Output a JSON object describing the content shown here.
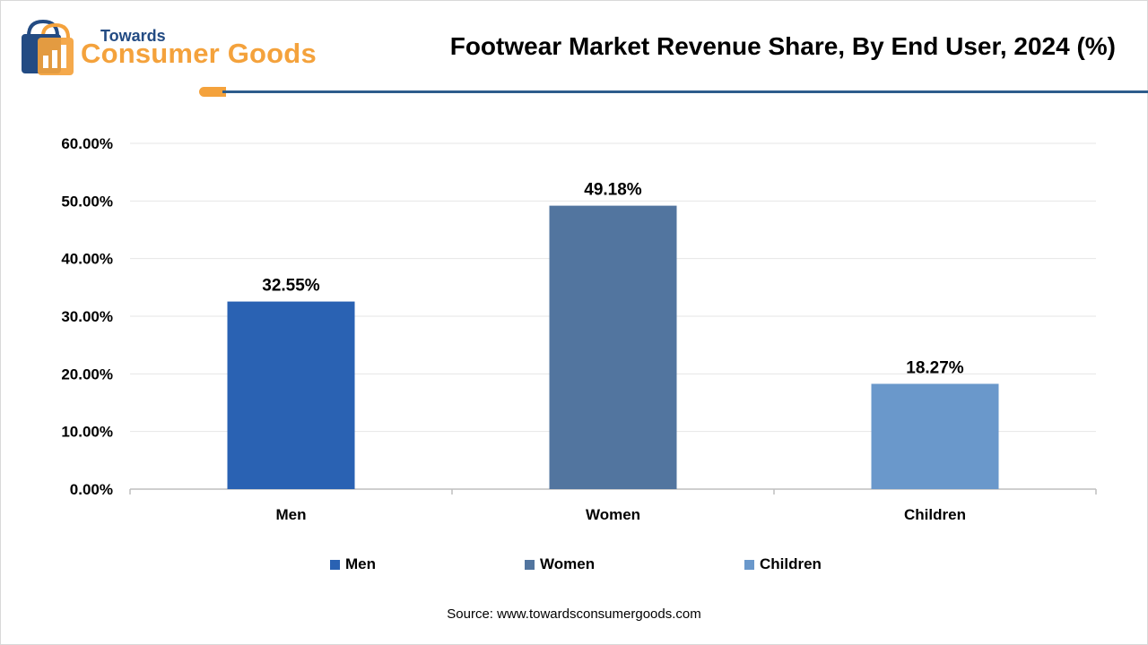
{
  "header": {
    "logo_line1": "Towards",
    "logo_line2": "Consumer Goods",
    "title": "Footwear Market Revenue Share, By End User, 2024 (%)"
  },
  "colors": {
    "logo_blue": "#234b83",
    "logo_orange": "#f4a23c",
    "rule": "#2d5d8c"
  },
  "chart_data": {
    "type": "bar",
    "categories": [
      "Men",
      "Women",
      "Children"
    ],
    "values": [
      32.55,
      49.18,
      18.27
    ],
    "value_labels": [
      "32.55%",
      "49.18%",
      "18.27%"
    ],
    "colors": [
      "#2a62b3",
      "#52759f",
      "#6a98cb"
    ],
    "yticks": [
      "0.00%",
      "10.00%",
      "20.00%",
      "30.00%",
      "40.00%",
      "50.00%",
      "60.00%"
    ],
    "ylim": [
      0,
      60
    ],
    "grid": true,
    "legend_position": "bottom",
    "legend": [
      "Men",
      "Women",
      "Children"
    ]
  },
  "footer": {
    "source": "Source: www.towardsconsumergoods.com"
  }
}
